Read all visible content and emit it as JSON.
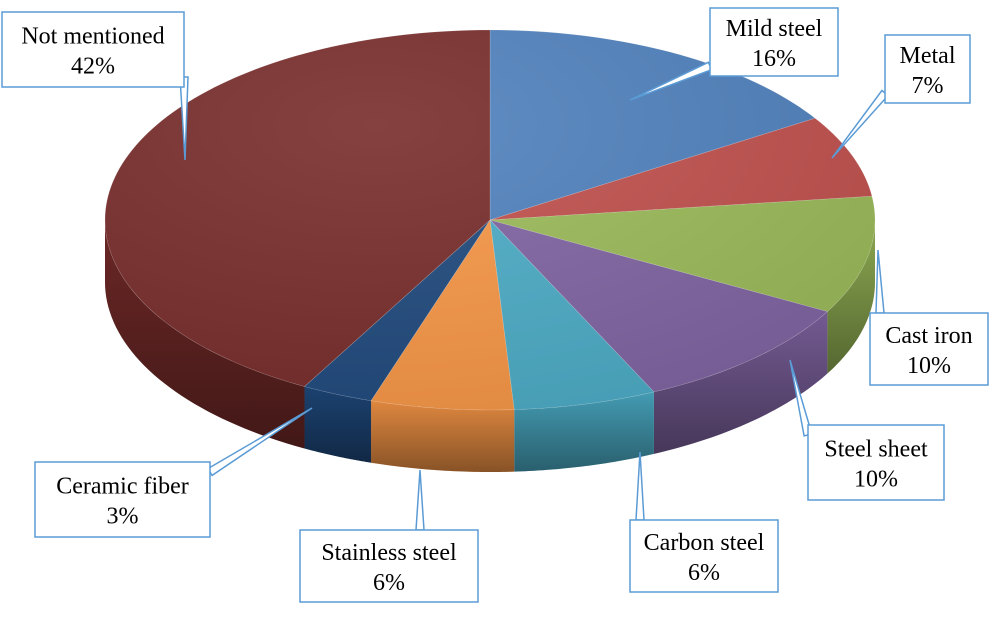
{
  "chart_data": {
    "type": "pie",
    "style": "3d-pie",
    "title": "",
    "legend": "none",
    "labels_style": "callouts",
    "slices": [
      {
        "label": "Mild steel",
        "value": 16,
        "value_label": "16%",
        "color": "#4F81BD"
      },
      {
        "label": "Metal",
        "value": 7,
        "value_label": "7%",
        "color": "#C0504D"
      },
      {
        "label": "Cast iron",
        "value": 10,
        "value_label": "10%",
        "color": "#9BBB59"
      },
      {
        "label": "Steel sheet",
        "value": 10,
        "value_label": "10%",
        "color": "#8064A2"
      },
      {
        "label": "Carbon steel",
        "value": 6,
        "value_label": "6%",
        "color": "#4BACC6"
      },
      {
        "label": "Stainless steel",
        "value": 6,
        "value_label": "6%",
        "color": "#F79646"
      },
      {
        "label": "Ceramic fiber",
        "value": 3,
        "value_label": "3%",
        "color": "#1F497D"
      },
      {
        "label": "Not mentioned",
        "value": 42,
        "value_label": "42%",
        "color": "#772C2A"
      }
    ]
  }
}
